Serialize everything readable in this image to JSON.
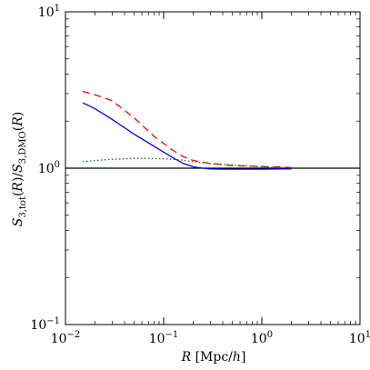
{
  "chart_data": {
    "type": "line",
    "title": "",
    "xlabel": "R [Mpc/h]",
    "ylabel": "S_3,tot(R)/S_3,DMO(R)",
    "xscale": "log",
    "yscale": "log",
    "xlim": [
      0.01,
      10
    ],
    "ylim": [
      0.1,
      10
    ],
    "grid": false,
    "legend": "none",
    "x_ticks": [
      {
        "base": "10",
        "exp": "−2"
      },
      {
        "base": "10",
        "exp": "−1"
      },
      {
        "base": "10",
        "exp": "0"
      },
      {
        "base": "10",
        "exp": "1"
      }
    ],
    "y_ticks": [
      {
        "base": "10",
        "exp": "−1"
      },
      {
        "base": "10",
        "exp": "0"
      },
      {
        "base": "10",
        "exp": "1"
      }
    ],
    "reference_line": {
      "y": 1.0,
      "color": "#000000"
    },
    "series": [
      {
        "style": "solid",
        "color": "#0000ee",
        "x": [
          0.015,
          0.02,
          0.03,
          0.05,
          0.08,
          0.12,
          0.16,
          0.2,
          0.25,
          0.3,
          0.4,
          0.6,
          1.0,
          1.5,
          2.0
        ],
        "y": [
          2.62,
          2.4,
          2.05,
          1.65,
          1.38,
          1.18,
          1.07,
          1.02,
          1.0,
          0.99,
          0.985,
          0.985,
          0.985,
          0.99,
          0.99
        ]
      },
      {
        "style": "dashed",
        "color": "#ff0000",
        "x": [
          0.015,
          0.02,
          0.03,
          0.05,
          0.08,
          0.12,
          0.16,
          0.2,
          0.3,
          0.5,
          0.8,
          1.2,
          1.5,
          2.0
        ],
        "y": [
          3.1,
          2.95,
          2.7,
          2.1,
          1.6,
          1.32,
          1.18,
          1.12,
          1.07,
          1.04,
          1.03,
          1.02,
          1.02,
          1.01
        ]
      },
      {
        "style": "dotted",
        "color": "#008000",
        "x": [
          0.015,
          0.02,
          0.03,
          0.05,
          0.07,
          0.1,
          0.15,
          0.2,
          0.3,
          0.5,
          0.8,
          1.0,
          1.5,
          2.0
        ],
        "y": [
          1.1,
          1.12,
          1.14,
          1.155,
          1.155,
          1.15,
          1.13,
          1.1,
          1.07,
          1.05,
          1.03,
          1.02,
          1.01,
          1.005
        ]
      }
    ]
  }
}
